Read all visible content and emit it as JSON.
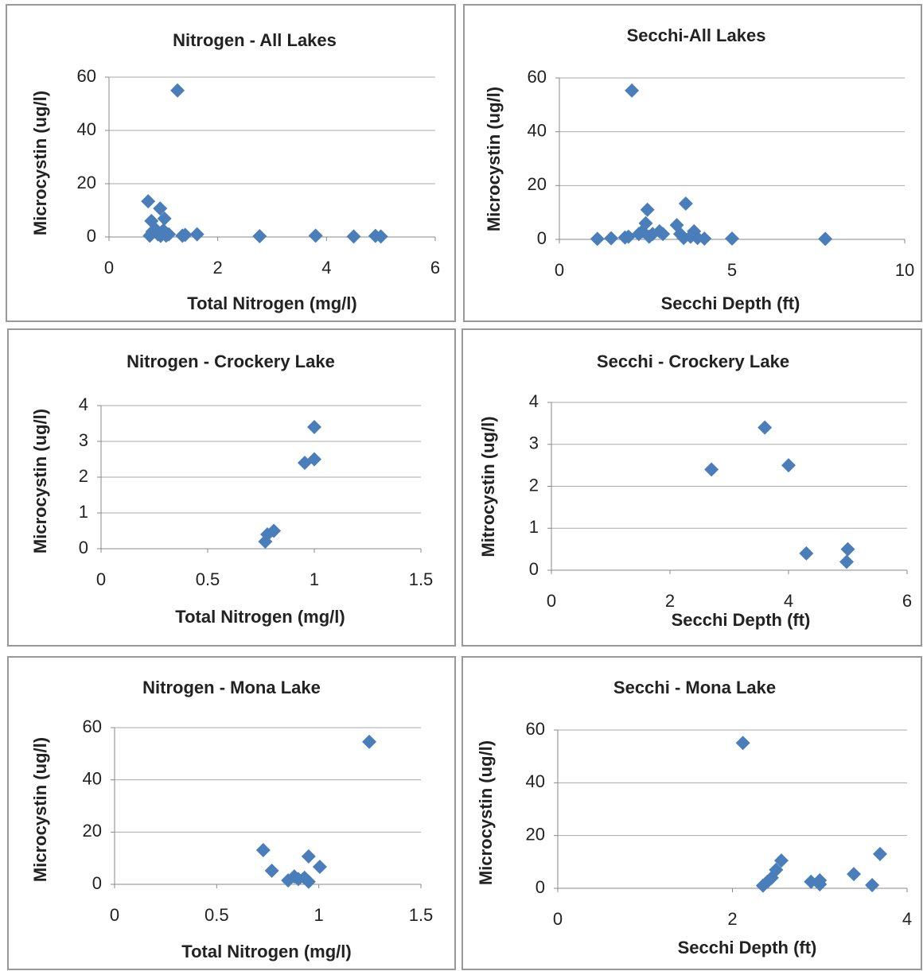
{
  "chart_data": [
    {
      "type": "scatter",
      "title": "Nitrogen - All Lakes",
      "x_label": "Total Nitrogen (mg/l)",
      "y_label": "Microcystin (ug/l)",
      "x": [
        1.26,
        0.72,
        0.94,
        1.02,
        0.78,
        0.75,
        0.8,
        0.85,
        0.9,
        0.95,
        1.0,
        1.05,
        1.1,
        1.35,
        1.4,
        1.62,
        2.77,
        3.8,
        4.5,
        4.9,
        5.0
      ],
      "values": [
        55,
        13.4,
        10.7,
        6.9,
        6,
        0.5,
        2,
        3,
        1,
        0.4,
        2.5,
        0.5,
        1,
        0.5,
        0.8,
        1,
        0.3,
        0.5,
        0.2,
        0.4,
        0.2
      ],
      "color": "#4a7ebb",
      "xlim": [
        0,
        6
      ],
      "ylim": [
        0,
        60
      ],
      "xticks": [
        0,
        2,
        4,
        6
      ],
      "yticks": [
        0,
        20,
        40,
        60
      ],
      "grid": true
    },
    {
      "type": "scatter",
      "title": "Secchi-All Lakes",
      "x_label": "Secchi Depth (ft)",
      "y_label": "Microcystin (ug/l)",
      "x": [
        2.1,
        3.66,
        2.55,
        3.4,
        1.1,
        1.5,
        1.9,
        2.0,
        2.3,
        2.4,
        2.5,
        2.6,
        2.7,
        2.9,
        3.0,
        3.5,
        3.6,
        3.8,
        3.9,
        4.0,
        4.2,
        5.0,
        7.7
      ],
      "values": [
        55.3,
        13.3,
        11,
        5.3,
        0.2,
        0.4,
        0.7,
        1,
        2,
        3,
        6,
        1,
        2,
        3,
        2,
        2,
        0.5,
        1,
        3,
        0.5,
        0.3,
        0.3,
        0.2
      ],
      "color": "#4a7ebb",
      "xlim": [
        0,
        10
      ],
      "ylim": [
        0,
        60
      ],
      "xticks": [
        0,
        5,
        10
      ],
      "yticks": [
        0,
        20,
        40,
        60
      ],
      "grid": true
    },
    {
      "type": "scatter",
      "title": "Nitrogen - Crockery Lake",
      "x_label": "Total Nitrogen (mg/l)",
      "y_label": "Microcystin (ug/l)",
      "x": [
        1.0,
        0.955,
        1.0,
        0.81,
        0.78,
        0.77
      ],
      "values": [
        3.4,
        2.4,
        2.5,
        0.5,
        0.4,
        0.2
      ],
      "color": "#4a7ebb",
      "xlim": [
        0,
        1.5
      ],
      "ylim": [
        0,
        4
      ],
      "xticks": [
        0,
        0.5,
        1,
        1.5
      ],
      "yticks": [
        0,
        1,
        2,
        3,
        4
      ],
      "grid": true
    },
    {
      "type": "scatter",
      "title": "Secchi - Crockery Lake",
      "x_label": "Secchi Depth (ft)",
      "y_label": "Mitrocystin (ug/l)",
      "x": [
        2.7,
        3.6,
        4.0,
        4.3,
        5.0,
        4.98
      ],
      "values": [
        2.4,
        3.4,
        2.5,
        0.4,
        0.5,
        0.2
      ],
      "color": "#4a7ebb",
      "xlim": [
        0,
        6
      ],
      "ylim": [
        0,
        4
      ],
      "xticks": [
        0,
        2,
        4,
        6
      ],
      "yticks": [
        0,
        1,
        2,
        3,
        4
      ],
      "grid": true
    },
    {
      "type": "scatter",
      "title": "Nitrogen - Mona Lake",
      "x_label": "Total Nitrogen (mg/l)",
      "y_label": "Microcystin (ug/l)",
      "x": [
        1.247,
        0.728,
        0.77,
        0.95,
        1.005,
        0.85,
        0.88,
        0.9,
        0.93,
        0.95
      ],
      "values": [
        54.6,
        13.1,
        5.2,
        10.7,
        6.7,
        1.5,
        3,
        2,
        2.5,
        1
      ],
      "color": "#4a7ebb",
      "xlim": [
        0,
        1.5
      ],
      "ylim": [
        0,
        60
      ],
      "xticks": [
        0,
        0.5,
        1,
        1.5
      ],
      "yticks": [
        0,
        20,
        40,
        60
      ],
      "grid": true
    },
    {
      "type": "scatter",
      "title": "Secchi - Mona Lake",
      "x_label": "Secchi Depth (ft)",
      "y_label": "Microcystin (ug/l)",
      "x": [
        2.12,
        3.69,
        2.56,
        2.5,
        2.45,
        2.4,
        2.35,
        2.9,
        3.0,
        3.0,
        3.39,
        3.6
      ],
      "values": [
        55.1,
        13,
        10.5,
        7,
        4,
        2.5,
        1,
        2.5,
        3,
        1.5,
        5.4,
        1.2
      ],
      "color": "#4a7ebb",
      "xlim": [
        0,
        4
      ],
      "ylim": [
        0,
        60
      ],
      "xticks": [
        0,
        2,
        4
      ],
      "yticks": [
        0,
        20,
        40,
        60
      ],
      "grid": true
    }
  ]
}
